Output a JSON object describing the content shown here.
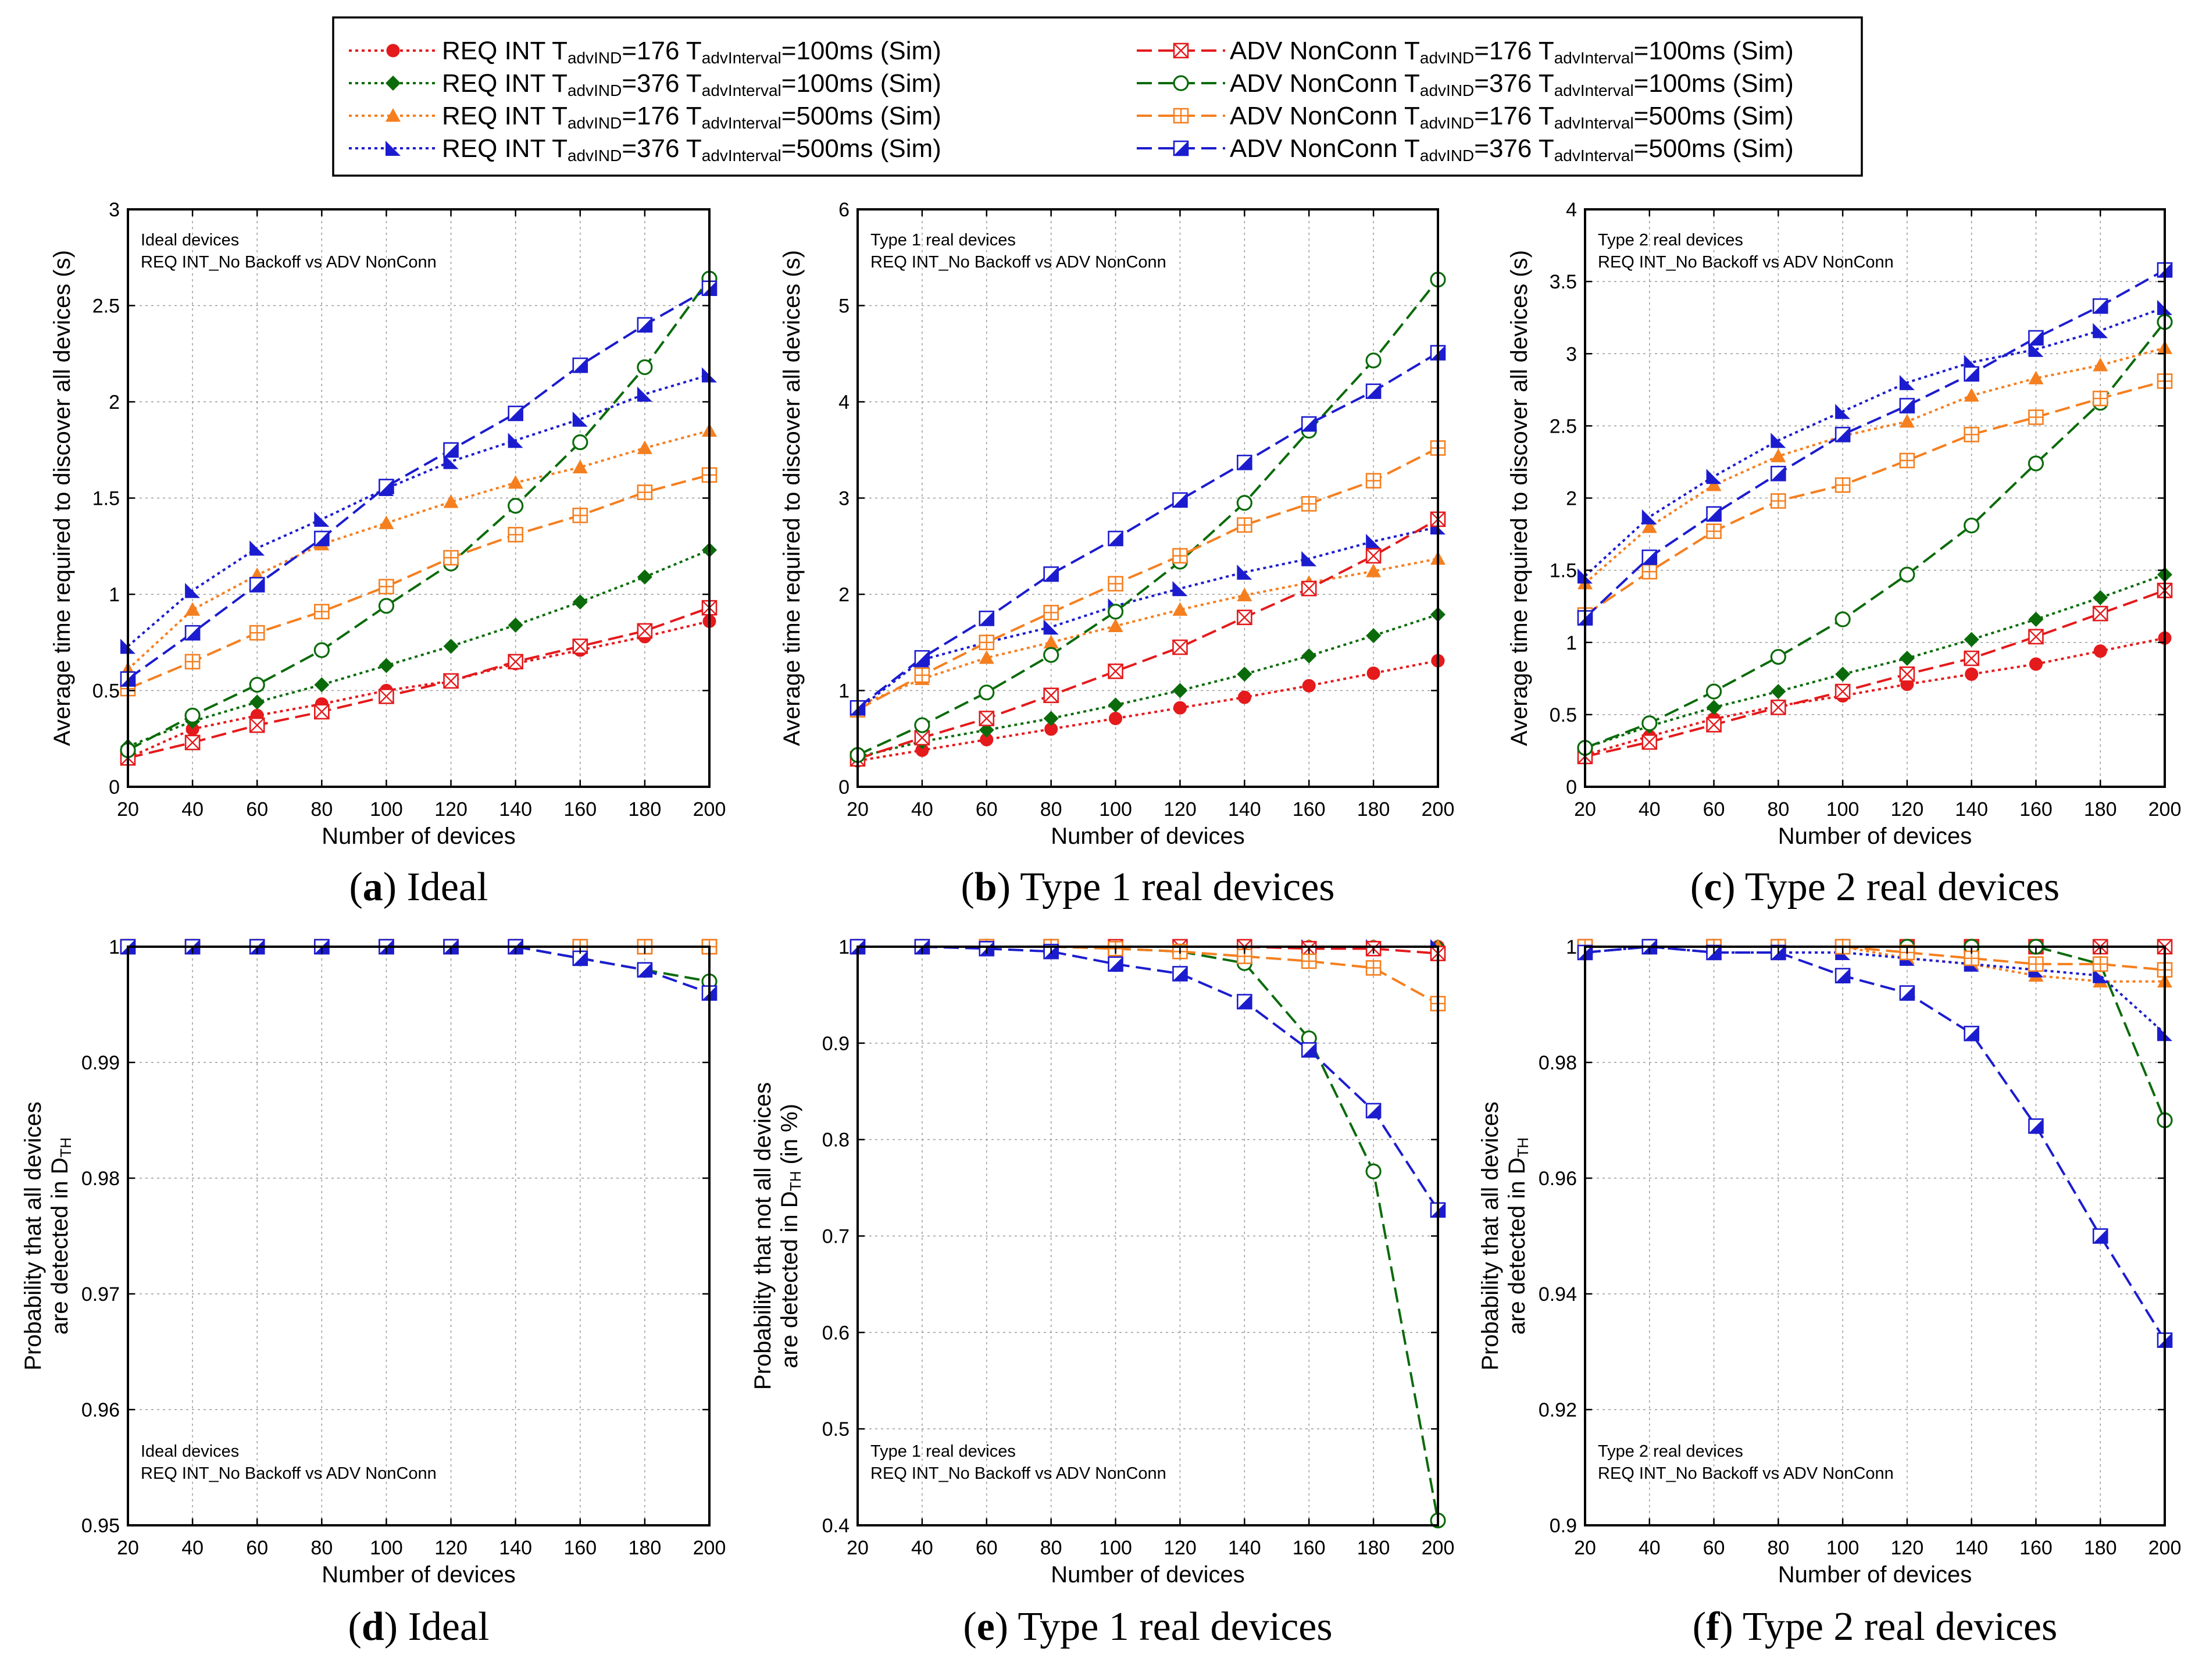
{
  "x_axis_label": "Number of devices",
  "panel_annotation_suffix": "REQ INT_No Backoff vs ADV NonConn",
  "legend": [
    {
      "series": "s1",
      "prefix": "REQ INT T",
      "sub1": "advIND",
      "mid": "=176 T",
      "sub2": "advInterval",
      "suffix": "=100ms (Sim)"
    },
    {
      "series": "s2",
      "prefix": "REQ INT T",
      "sub1": "advIND",
      "mid": "=376 T",
      "sub2": "advInterval",
      "suffix": "=100ms (Sim)"
    },
    {
      "series": "s3",
      "prefix": "REQ INT T",
      "sub1": "advIND",
      "mid": "=176 T",
      "sub2": "advInterval",
      "suffix": "=500ms (Sim)"
    },
    {
      "series": "s4",
      "prefix": "REQ INT T",
      "sub1": "advIND",
      "mid": "=376 T",
      "sub2": "advInterval",
      "suffix": "=500ms (Sim)"
    },
    {
      "series": "s5",
      "prefix": "ADV NonConn T",
      "sub1": "advIND",
      "mid": "=176 T",
      "sub2": "advInterval",
      "suffix": "=100ms (Sim)"
    },
    {
      "series": "s6",
      "prefix": "ADV NonConn T",
      "sub1": "advIND",
      "mid": "=376 T",
      "sub2": "advInterval",
      "suffix": "=100ms (Sim)"
    },
    {
      "series": "s7",
      "prefix": "ADV NonConn T",
      "sub1": "advIND",
      "mid": "=176 T",
      "sub2": "advInterval",
      "suffix": "=500ms (Sim)"
    },
    {
      "series": "s8",
      "prefix": "ADV NonConn T",
      "sub1": "advIND",
      "mid": "=376 T",
      "sub2": "advInterval",
      "suffix": "=500ms (Sim)"
    }
  ],
  "series_styles": {
    "s1": {
      "color": "#e41a1c",
      "marker": "circle",
      "dash": "dotted"
    },
    "s2": {
      "color": "#0b6b0b",
      "marker": "diamond",
      "dash": "dotted"
    },
    "s3": {
      "color": "#f57f1f",
      "marker": "triangle",
      "dash": "dotted"
    },
    "s4": {
      "color": "#1c1ccf",
      "marker": "righttri",
      "dash": "dotted"
    },
    "s5": {
      "color": "#e41a1c",
      "marker": "boxx",
      "dash": "dashed"
    },
    "s6": {
      "color": "#0b6b0b",
      "marker": "opencircle",
      "dash": "dashed"
    },
    "s7": {
      "color": "#f57f1f",
      "marker": "boxplus",
      "dash": "dashed"
    },
    "s8": {
      "color": "#1c1ccf",
      "marker": "halfbox",
      "dash": "dashed"
    }
  },
  "chart_data": [
    {
      "id": "a",
      "type": "line",
      "caption_letter": "a",
      "caption_text": "Ideal",
      "annotation": "Ideal devices",
      "ylabel": [
        "Average time required to discover all devices (s)"
      ],
      "ylim": [
        0,
        3
      ],
      "yticks": [
        0,
        0.5,
        1,
        1.5,
        2,
        2.5,
        3
      ],
      "ytick_labels": [
        "0",
        "0.5",
        "1",
        "1.5",
        "2",
        "2.5",
        "3"
      ],
      "xlim": [
        20,
        200
      ],
      "x": [
        20,
        40,
        60,
        80,
        100,
        120,
        140,
        160,
        180,
        200
      ],
      "annotation_pos": "top-left",
      "series": [
        {
          "key": "s1",
          "values": [
            0.15,
            0.3,
            0.37,
            0.43,
            0.5,
            0.55,
            0.64,
            0.71,
            0.78,
            0.86
          ]
        },
        {
          "key": "s2",
          "values": [
            0.21,
            0.34,
            0.44,
            0.53,
            0.63,
            0.73,
            0.84,
            0.96,
            1.09,
            1.23
          ]
        },
        {
          "key": "s3",
          "values": [
            0.61,
            0.92,
            1.1,
            1.26,
            1.37,
            1.48,
            1.58,
            1.66,
            1.76,
            1.85
          ]
        },
        {
          "key": "s4",
          "values": [
            0.73,
            1.02,
            1.24,
            1.39,
            1.55,
            1.69,
            1.8,
            1.91,
            2.04,
            2.14
          ]
        },
        {
          "key": "s5",
          "values": [
            0.15,
            0.23,
            0.32,
            0.39,
            0.47,
            0.55,
            0.65,
            0.73,
            0.81,
            0.93
          ]
        },
        {
          "key": "s6",
          "values": [
            0.19,
            0.37,
            0.53,
            0.71,
            0.94,
            1.16,
            1.46,
            1.79,
            2.18,
            2.64
          ]
        },
        {
          "key": "s7",
          "values": [
            0.51,
            0.65,
            0.8,
            0.91,
            1.04,
            1.19,
            1.31,
            1.41,
            1.53,
            1.62
          ]
        },
        {
          "key": "s8",
          "values": [
            0.56,
            0.8,
            1.05,
            1.29,
            1.56,
            1.75,
            1.94,
            2.19,
            2.4,
            2.59
          ]
        }
      ]
    },
    {
      "id": "b",
      "type": "line",
      "caption_letter": "b",
      "caption_text": "Type 1 real devices",
      "annotation": "Type 1 real devices",
      "ylabel": [
        "Average time required to discover all devices (s)"
      ],
      "ylim": [
        0,
        6
      ],
      "yticks": [
        0,
        1,
        2,
        3,
        4,
        5,
        6
      ],
      "ytick_labels": [
        "0",
        "1",
        "2",
        "3",
        "4",
        "5",
        "6"
      ],
      "xlim": [
        20,
        200
      ],
      "x": [
        20,
        40,
        60,
        80,
        100,
        120,
        140,
        160,
        180,
        200
      ],
      "annotation_pos": "top-left",
      "series": [
        {
          "key": "s1",
          "values": [
            0.27,
            0.38,
            0.49,
            0.6,
            0.71,
            0.82,
            0.93,
            1.05,
            1.18,
            1.31
          ]
        },
        {
          "key": "s2",
          "values": [
            0.31,
            0.47,
            0.59,
            0.71,
            0.85,
            1.0,
            1.17,
            1.36,
            1.57,
            1.79
          ]
        },
        {
          "key": "s3",
          "values": [
            0.84,
            1.12,
            1.34,
            1.5,
            1.67,
            1.84,
            1.99,
            2.12,
            2.24,
            2.37
          ]
        },
        {
          "key": "s4",
          "values": [
            0.8,
            1.32,
            1.5,
            1.66,
            1.88,
            2.06,
            2.23,
            2.37,
            2.55,
            2.7
          ]
        },
        {
          "key": "s5",
          "values": [
            0.29,
            0.51,
            0.71,
            0.95,
            1.2,
            1.45,
            1.76,
            2.06,
            2.4,
            2.78
          ]
        },
        {
          "key": "s6",
          "values": [
            0.33,
            0.64,
            0.98,
            1.37,
            1.82,
            2.34,
            2.95,
            3.7,
            4.43,
            5.27
          ]
        },
        {
          "key": "s7",
          "values": [
            0.8,
            1.16,
            1.5,
            1.81,
            2.11,
            2.4,
            2.72,
            2.94,
            3.18,
            3.52
          ]
        },
        {
          "key": "s8",
          "values": [
            0.82,
            1.34,
            1.75,
            2.21,
            2.58,
            2.98,
            3.37,
            3.77,
            4.11,
            4.51
          ]
        }
      ]
    },
    {
      "id": "c",
      "type": "line",
      "caption_letter": "c",
      "caption_text": "Type 2 real devices",
      "annotation": "Type 2 real devices",
      "ylabel": [
        "Average time required to discover all devices (s)"
      ],
      "ylim": [
        0,
        4
      ],
      "yticks": [
        0,
        0.5,
        1,
        1.5,
        2,
        2.5,
        3,
        3.5,
        4
      ],
      "ytick_labels": [
        "0",
        "0.5",
        "1",
        "1.5",
        "2",
        "2.5",
        "3",
        "3.5",
        "4"
      ],
      "xlim": [
        20,
        200
      ],
      "x": [
        20,
        40,
        60,
        80,
        100,
        120,
        140,
        160,
        180,
        200
      ],
      "annotation_pos": "top-left",
      "series": [
        {
          "key": "s1",
          "values": [
            0.22,
            0.35,
            0.47,
            0.56,
            0.63,
            0.71,
            0.78,
            0.85,
            0.94,
            1.03
          ]
        },
        {
          "key": "s2",
          "values": [
            0.27,
            0.42,
            0.55,
            0.66,
            0.78,
            0.89,
            1.02,
            1.16,
            1.31,
            1.47
          ]
        },
        {
          "key": "s3",
          "values": [
            1.41,
            1.8,
            2.09,
            2.29,
            2.43,
            2.53,
            2.71,
            2.83,
            2.92,
            3.04
          ]
        },
        {
          "key": "s4",
          "values": [
            1.46,
            1.87,
            2.15,
            2.4,
            2.6,
            2.8,
            2.94,
            3.03,
            3.16,
            3.32
          ]
        },
        {
          "key": "s5",
          "values": [
            0.21,
            0.31,
            0.43,
            0.55,
            0.66,
            0.78,
            0.89,
            1.04,
            1.2,
            1.36
          ]
        },
        {
          "key": "s6",
          "values": [
            0.27,
            0.44,
            0.66,
            0.9,
            1.16,
            1.47,
            1.81,
            2.24,
            2.66,
            3.22
          ]
        },
        {
          "key": "s7",
          "values": [
            1.19,
            1.49,
            1.77,
            1.98,
            2.09,
            2.26,
            2.44,
            2.56,
            2.69,
            2.81
          ]
        },
        {
          "key": "s8",
          "values": [
            1.17,
            1.59,
            1.89,
            2.17,
            2.44,
            2.64,
            2.86,
            3.11,
            3.33,
            3.58
          ]
        }
      ]
    },
    {
      "id": "d",
      "type": "line",
      "caption_letter": "d",
      "caption_text": "Ideal",
      "annotation": "Ideal devices",
      "ylabel": [
        "Probability that all devices",
        "are detected in D",
        "TH"
      ],
      "ylim": [
        0.95,
        1
      ],
      "yticks": [
        0.95,
        0.96,
        0.97,
        0.98,
        0.99,
        1
      ],
      "ytick_labels": [
        "0.95",
        "0.96",
        "0.97",
        "0.98",
        "0.99",
        "1"
      ],
      "xlim": [
        20,
        200
      ],
      "x": [
        20,
        40,
        60,
        80,
        100,
        120,
        140,
        160,
        180,
        200
      ],
      "annotation_pos": "bottom-left",
      "series": [
        {
          "key": "s1",
          "values": [
            1,
            1,
            1,
            1,
            1,
            1,
            1,
            1,
            1,
            1
          ]
        },
        {
          "key": "s2",
          "values": [
            1,
            1,
            1,
            1,
            1,
            1,
            1,
            1,
            1,
            1
          ]
        },
        {
          "key": "s3",
          "values": [
            1,
            1,
            1,
            1,
            1,
            1,
            1,
            1,
            1,
            1
          ]
        },
        {
          "key": "s4",
          "values": [
            1,
            1,
            1,
            1,
            1,
            1,
            1,
            1,
            1,
            1
          ]
        },
        {
          "key": "s5",
          "values": [
            1,
            1,
            1,
            1,
            1,
            1,
            1,
            1,
            1,
            1
          ]
        },
        {
          "key": "s6",
          "values": [
            1,
            1,
            1,
            1,
            1,
            1,
            1,
            0.999,
            0.998,
            0.997
          ]
        },
        {
          "key": "s7",
          "values": [
            1,
            1,
            1,
            1,
            1,
            1,
            1,
            1,
            1,
            1
          ]
        },
        {
          "key": "s8",
          "values": [
            1,
            1,
            1,
            1,
            1,
            1,
            1,
            0.999,
            0.998,
            0.996
          ]
        }
      ]
    },
    {
      "id": "e",
      "type": "line",
      "caption_letter": "e",
      "caption_text": "Type 1 real devices",
      "annotation": "Type 1 real devices",
      "ylabel": [
        "Probability that not all devices",
        "are detected in D",
        "TH",
        " (in %)"
      ],
      "ylim": [
        0.4,
        1
      ],
      "yticks": [
        0.4,
        0.5,
        0.6,
        0.7,
        0.8,
        0.9,
        1
      ],
      "ytick_labels": [
        "0.4",
        "0.5",
        "0.6",
        "0.7",
        "0.8",
        "0.9",
        "1"
      ],
      "xlim": [
        20,
        200
      ],
      "x": [
        20,
        40,
        60,
        80,
        100,
        120,
        140,
        160,
        180,
        200
      ],
      "annotation_pos": "bottom-left",
      "series": [
        {
          "key": "s1",
          "values": [
            1,
            1,
            1,
            1,
            1,
            1,
            1,
            1,
            1,
            1
          ]
        },
        {
          "key": "s2",
          "values": [
            1,
            1,
            1,
            1,
            1,
            1,
            1,
            1,
            1,
            1
          ]
        },
        {
          "key": "s3",
          "values": [
            1,
            1,
            1,
            1,
            1,
            1,
            1,
            1,
            1,
            1
          ]
        },
        {
          "key": "s4",
          "values": [
            1,
            1,
            1,
            1,
            1,
            1,
            1,
            1,
            1,
            1
          ]
        },
        {
          "key": "s5",
          "values": [
            1,
            1,
            1,
            1,
            1,
            1,
            1,
            0.998,
            0.998,
            0.993
          ]
        },
        {
          "key": "s6",
          "values": [
            1,
            1,
            1,
            1,
            0.998,
            0.995,
            0.983,
            0.905,
            0.767,
            0.405
          ]
        },
        {
          "key": "s7",
          "values": [
            1,
            1,
            1,
            1,
            0.998,
            0.995,
            0.99,
            0.985,
            0.978,
            0.941
          ]
        },
        {
          "key": "s8",
          "values": [
            1,
            1,
            0.998,
            0.995,
            0.982,
            0.972,
            0.943,
            0.893,
            0.83,
            0.727
          ]
        }
      ]
    },
    {
      "id": "f",
      "type": "line",
      "caption_letter": "f",
      "caption_text": "Type 2 real devices",
      "annotation": "Type 2 real devices",
      "ylabel": [
        "Probability that all devices",
        "are detected in D",
        "TH"
      ],
      "ylim": [
        0.9,
        1
      ],
      "yticks": [
        0.9,
        0.92,
        0.94,
        0.96,
        0.98,
        1
      ],
      "ytick_labels": [
        "0.9",
        "0.92",
        "0.94",
        "0.96",
        "0.98",
        "1"
      ],
      "xlim": [
        20,
        200
      ],
      "x": [
        20,
        40,
        60,
        80,
        100,
        120,
        140,
        160,
        180,
        200
      ],
      "annotation_pos": "bottom-left",
      "series": [
        {
          "key": "s1",
          "values": [
            1,
            1,
            1,
            1,
            1,
            1,
            1,
            1,
            1,
            1
          ]
        },
        {
          "key": "s2",
          "values": [
            1,
            1,
            1,
            1,
            1,
            1,
            1,
            1,
            1,
            1
          ]
        },
        {
          "key": "s3",
          "values": [
            1,
            1,
            1,
            1,
            1,
            0.998,
            0.997,
            0.995,
            0.994,
            0.994
          ]
        },
        {
          "key": "s4",
          "values": [
            0.999,
            1,
            0.999,
            0.999,
            0.999,
            0.998,
            0.997,
            0.996,
            0.995,
            0.985
          ]
        },
        {
          "key": "s5",
          "values": [
            1,
            1,
            1,
            1,
            1,
            1,
            1,
            1,
            1,
            1
          ]
        },
        {
          "key": "s6",
          "values": [
            0.999,
            1,
            1,
            1,
            1,
            1,
            1,
            1,
            0.997,
            0.97
          ]
        },
        {
          "key": "s7",
          "values": [
            1,
            1,
            1,
            1,
            1,
            0.999,
            0.998,
            0.997,
            0.997,
            0.996
          ]
        },
        {
          "key": "s8",
          "values": [
            0.999,
            1,
            0.999,
            0.999,
            0.995,
            0.992,
            0.985,
            0.969,
            0.95,
            0.932
          ]
        }
      ]
    }
  ]
}
